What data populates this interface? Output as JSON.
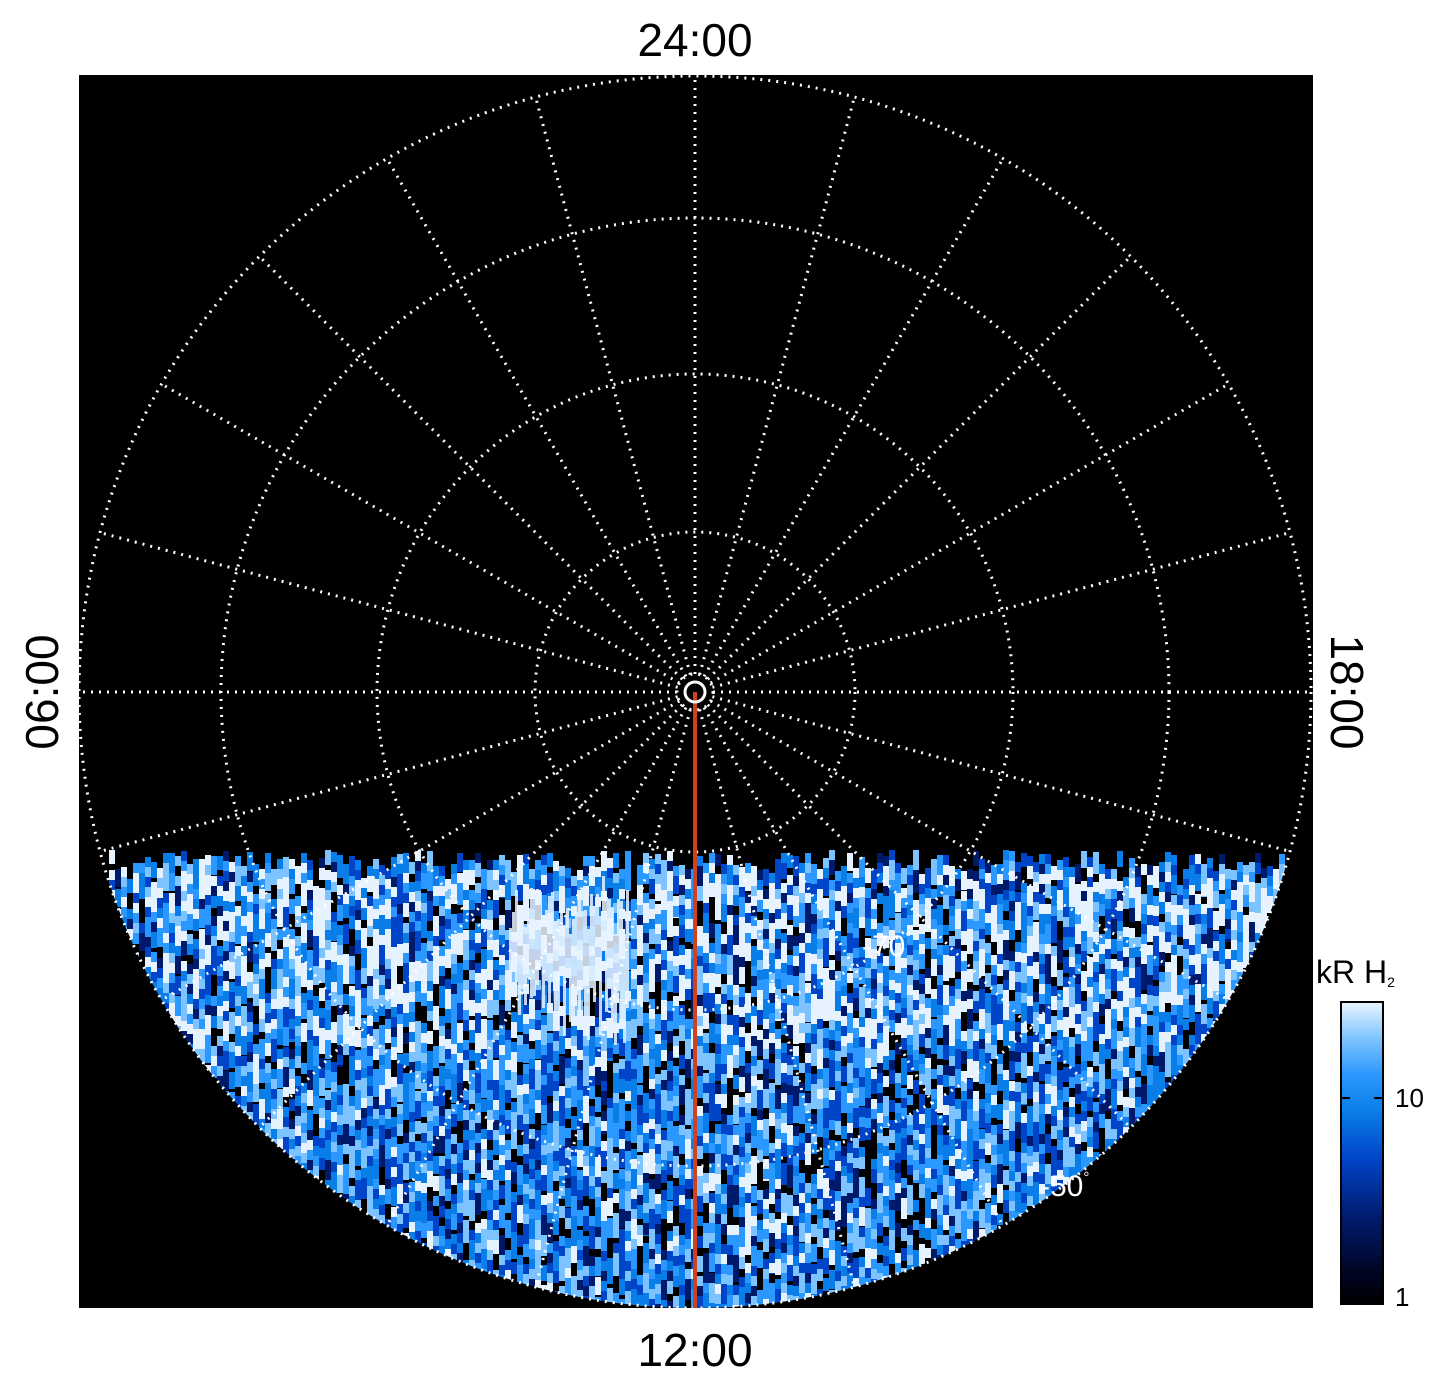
{
  "map": {
    "local_time_labels": {
      "top": "24:00",
      "bottom": "12:00",
      "left": "06:00",
      "right": "18:00"
    },
    "latitude_labels": [
      {
        "text": "-70",
        "unit": "°"
      },
      {
        "text": "-50",
        "unit": "°"
      }
    ],
    "colors": {
      "background": "#000000",
      "grid": "#ffffff",
      "meridian_line": "#d2411e",
      "emission_scale": [
        "#000000",
        "#001a6b",
        "#0044c8",
        "#0a7ee8",
        "#2b98ff",
        "#7dc3ff",
        "#e6f3ff"
      ]
    }
  },
  "colorbar": {
    "title_main": "kR H",
    "title_sub": "2",
    "scale": "log",
    "range": [
      1,
      25
    ],
    "tick_labels": [
      "10",
      "1"
    ]
  }
}
